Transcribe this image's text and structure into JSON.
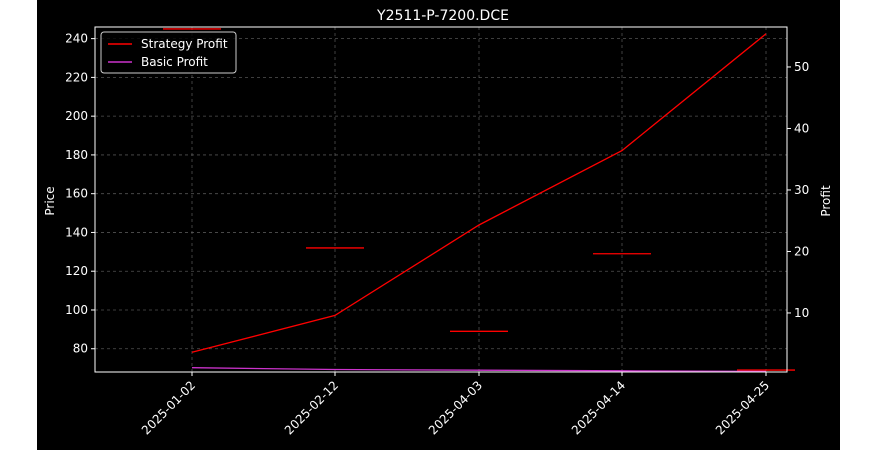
{
  "chart_data": {
    "type": "line",
    "title": "Y2511-P-7200.DCE",
    "xlabel": "",
    "ylabel": "Price",
    "y2label": "Profit",
    "categories": [
      "2025-01-02",
      "2025-02-12",
      "2025-04-03",
      "2025-04-14",
      "2025-04-25"
    ],
    "ylim": [
      68,
      246
    ],
    "yticks": [
      80,
      100,
      120,
      140,
      160,
      180,
      200,
      220,
      240
    ],
    "y2lim": [
      0.4,
      56.5
    ],
    "y2ticks": [
      10,
      20,
      30,
      40,
      50
    ],
    "grid": true,
    "legend_position": "top-left",
    "background": "#000000",
    "price_markers": {
      "color": "#ff0000",
      "values": [
        245,
        132,
        89,
        129,
        69
      ]
    },
    "series": [
      {
        "name": "Strategy Profit",
        "axis": "right",
        "color": "#ff0000",
        "values": [
          3.6,
          9.6,
          24.3,
          36.4,
          55.4
        ]
      },
      {
        "name": "Basic Profit",
        "axis": "right",
        "color": "#cc33cc",
        "values": [
          1.1,
          0.8,
          0.7,
          0.6,
          0.5
        ]
      }
    ]
  }
}
